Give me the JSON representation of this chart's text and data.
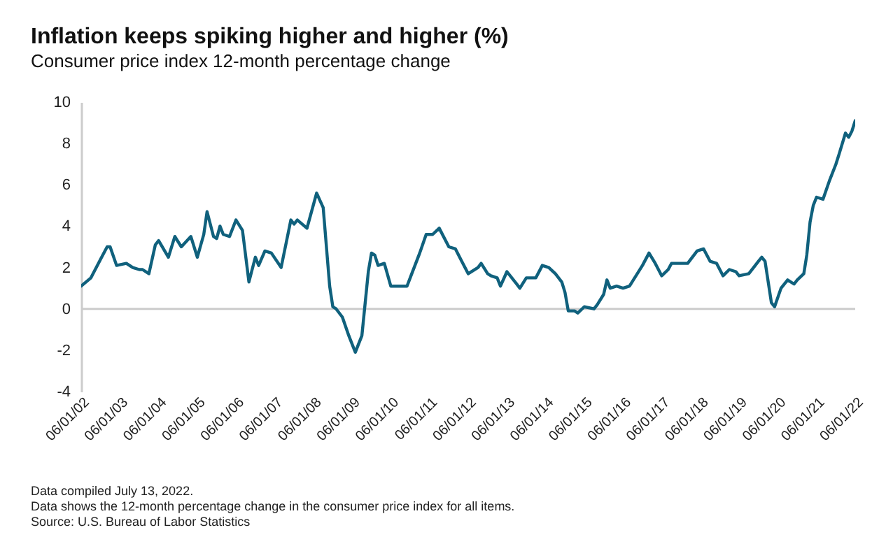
{
  "chart_data": {
    "type": "line",
    "title": "Inflation keeps spiking higher and higher (%)",
    "subtitle": "Consumer price index 12-month percentage change",
    "annotations": [
      "Data compiled July 13, 2022.",
      "Data shows the 12-month percentage change in the consumer price index for all items.",
      "Source: U.S. Bureau of Labor Statistics"
    ],
    "x": [
      "2002-06",
      "2002-09",
      "2002-12",
      "2003-02",
      "2003-03",
      "2003-05",
      "2003-08",
      "2003-10",
      "2003-12",
      "2004-01",
      "2004-03",
      "2004-05",
      "2004-06",
      "2004-09",
      "2004-11",
      "2005-01",
      "2005-04",
      "2005-06",
      "2005-08",
      "2005-09",
      "2005-11",
      "2005-12",
      "2006-01",
      "2006-02",
      "2006-04",
      "2006-06",
      "2006-08",
      "2006-10",
      "2006-12",
      "2007-01",
      "2007-03",
      "2007-05",
      "2007-08",
      "2007-11",
      "2007-12",
      "2008-01",
      "2008-04",
      "2008-07",
      "2008-09",
      "2008-11",
      "2008-12",
      "2009-01",
      "2009-03",
      "2009-05",
      "2009-07",
      "2009-09",
      "2009-11",
      "2009-12",
      "2010-01",
      "2010-02",
      "2010-04",
      "2010-06",
      "2010-09",
      "2010-11",
      "2010-12",
      "2011-03",
      "2011-05",
      "2011-07",
      "2011-09",
      "2011-12",
      "2012-02",
      "2012-04",
      "2012-06",
      "2012-09",
      "2012-10",
      "2012-12",
      "2013-01",
      "2013-03",
      "2013-04",
      "2013-06",
      "2013-09",
      "2013-10",
      "2013-12",
      "2014-03",
      "2014-05",
      "2014-07",
      "2014-09",
      "2014-11",
      "2014-12",
      "2015-01",
      "2015-03",
      "2015-04",
      "2015-06",
      "2015-09",
      "2015-10",
      "2015-12",
      "2016-01",
      "2016-02",
      "2016-04",
      "2016-06",
      "2016-08",
      "2016-10",
      "2016-12",
      "2017-02",
      "2017-04",
      "2017-06",
      "2017-08",
      "2017-09",
      "2017-11",
      "2018-02",
      "2018-05",
      "2018-07",
      "2018-09",
      "2018-11",
      "2019-01",
      "2019-03",
      "2019-05",
      "2019-06",
      "2019-09",
      "2019-12",
      "2020-01",
      "2020-02",
      "2020-04",
      "2020-05",
      "2020-07",
      "2020-09",
      "2020-11",
      "2020-12",
      "2021-02",
      "2021-03",
      "2021-04",
      "2021-05",
      "2021-06",
      "2021-08",
      "2021-10",
      "2021-12",
      "2022-01",
      "2022-03",
      "2022-04",
      "2022-05",
      "2022-06"
    ],
    "series": [
      {
        "color": "#10617d",
        "values": [
          1.1,
          1.5,
          2.4,
          3.0,
          3.0,
          2.1,
          2.2,
          2.0,
          1.9,
          1.9,
          1.7,
          3.1,
          3.3,
          2.5,
          3.5,
          3.0,
          3.5,
          2.5,
          3.6,
          4.7,
          3.5,
          3.4,
          4.0,
          3.6,
          3.5,
          4.3,
          3.8,
          1.3,
          2.5,
          2.1,
          2.8,
          2.7,
          2.0,
          4.3,
          4.1,
          4.3,
          3.9,
          5.6,
          4.9,
          1.1,
          0.1,
          0.0,
          -0.4,
          -1.3,
          -2.1,
          -1.3,
          1.8,
          2.7,
          2.6,
          2.1,
          2.2,
          1.1,
          1.1,
          1.1,
          1.5,
          2.7,
          3.6,
          3.6,
          3.9,
          3.0,
          2.9,
          2.3,
          1.7,
          2.0,
          2.2,
          1.7,
          1.6,
          1.5,
          1.1,
          1.8,
          1.2,
          1.0,
          1.5,
          1.5,
          2.1,
          2.0,
          1.7,
          1.3,
          0.8,
          -0.1,
          -0.1,
          -0.2,
          0.1,
          0.0,
          0.2,
          0.7,
          1.4,
          1.0,
          1.1,
          1.0,
          1.1,
          1.6,
          2.1,
          2.7,
          2.2,
          1.6,
          1.9,
          2.2,
          2.2,
          2.2,
          2.8,
          2.9,
          2.3,
          2.2,
          1.6,
          1.9,
          1.8,
          1.6,
          1.7,
          2.3,
          2.5,
          2.3,
          0.3,
          0.1,
          1.0,
          1.4,
          1.2,
          1.4,
          1.7,
          2.6,
          4.2,
          5.0,
          5.4,
          5.3,
          6.2,
          7.0,
          7.5,
          8.5,
          8.3,
          8.6,
          9.1
        ]
      }
    ],
    "xlim": [
      "2002-06",
      "2022-06"
    ],
    "xticks": [
      {
        "value": "2002-06-01",
        "label": "06/01/02"
      },
      {
        "value": "2003-06-01",
        "label": "06/01/03"
      },
      {
        "value": "2004-06-01",
        "label": "06/01/04"
      },
      {
        "value": "2005-06-01",
        "label": "06/01/05"
      },
      {
        "value": "2006-06-01",
        "label": "06/01/06"
      },
      {
        "value": "2007-06-01",
        "label": "06/01/07"
      },
      {
        "value": "2008-06-01",
        "label": "06/01/08"
      },
      {
        "value": "2009-06-01",
        "label": "06/01/09"
      },
      {
        "value": "2010-06-01",
        "label": "06/01/10"
      },
      {
        "value": "2011-06-01",
        "label": "06/01/11"
      },
      {
        "value": "2012-06-01",
        "label": "06/01/12"
      },
      {
        "value": "2013-06-01",
        "label": "06/01/13"
      },
      {
        "value": "2014-06-01",
        "label": "06/01/14"
      },
      {
        "value": "2015-06-01",
        "label": "06/01/15"
      },
      {
        "value": "2016-06-01",
        "label": "06/01/16"
      },
      {
        "value": "2017-06-01",
        "label": "06/01/17"
      },
      {
        "value": "2018-06-01",
        "label": "06/01/18"
      },
      {
        "value": "2019-06-01",
        "label": "06/01/19"
      },
      {
        "value": "2020-06-01",
        "label": "06/01/20"
      },
      {
        "value": "2021-06-01",
        "label": "06/01/21"
      },
      {
        "value": "2022-06-01",
        "label": "06/01/22"
      }
    ],
    "ylim": [
      -4,
      10
    ],
    "yticks": [
      -4,
      -2,
      0,
      2,
      4,
      6,
      8,
      10
    ],
    "ref_lines": [
      {
        "axis": "y",
        "value": 0,
        "color": "#cccccc"
      }
    ],
    "grid": false
  }
}
